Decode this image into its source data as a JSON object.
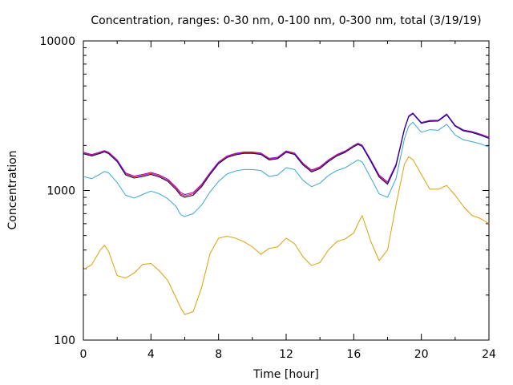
{
  "chart_data": {
    "type": "line",
    "title": "Concentration, ranges: 0-30 nm, 0-100 nm, 0-300 nm, total (3/19/19)",
    "xlabel": "Time [hour]",
    "ylabel": "Concentration",
    "xlim": [
      0,
      24
    ],
    "ylim": [
      100,
      10000
    ],
    "yscale": "log",
    "grid": false,
    "x_ticks": [
      0,
      4,
      8,
      12,
      16,
      20,
      24
    ],
    "x_tick_labels": [
      "0",
      "4",
      "8",
      "12",
      "16",
      "20",
      "24"
    ],
    "y_ticks": [
      100,
      1000,
      10000
    ],
    "y_tick_labels": [
      "100",
      "1000",
      "10000"
    ],
    "x": [
      0,
      0.5,
      1,
      1.25,
      1.5,
      2,
      2.5,
      3,
      3.5,
      4,
      4.5,
      5,
      5.5,
      5.75,
      6,
      6.5,
      7,
      7.5,
      8,
      8.5,
      9,
      9.5,
      10,
      10.5,
      11,
      11.5,
      12,
      12.5,
      13,
      13.5,
      14,
      14.5,
      15,
      15.5,
      16,
      16.25,
      16.5,
      17,
      17.5,
      18,
      18.5,
      19,
      19.25,
      19.5,
      20,
      20.5,
      21,
      21.5,
      22,
      22.5,
      23,
      23.5,
      24
    ],
    "series": [
      {
        "color": "#e51e10",
        "values": [
          1780,
          1720,
          1790,
          1830,
          1780,
          1580,
          1290,
          1230,
          1260,
          1300,
          1250,
          1170,
          1030,
          950,
          920,
          950,
          1080,
          1300,
          1530,
          1680,
          1750,
          1790,
          1790,
          1760,
          1620,
          1650,
          1820,
          1760,
          1500,
          1350,
          1420,
          1580,
          1720,
          1820,
          1980,
          2050,
          1990,
          1590,
          1250,
          1120,
          1480,
          2580,
          3130,
          3280,
          2830,
          2920,
          2930,
          3230,
          2710,
          2520,
          2460,
          2360,
          2250
        ]
      },
      {
        "color": "#9400d3",
        "values": [
          1800,
          1740,
          1810,
          1850,
          1800,
          1600,
          1310,
          1250,
          1280,
          1320,
          1270,
          1190,
          1050,
          970,
          940,
          970,
          1100,
          1320,
          1550,
          1700,
          1770,
          1810,
          1810,
          1780,
          1640,
          1670,
          1840,
          1780,
          1520,
          1370,
          1440,
          1600,
          1740,
          1840,
          2000,
          2070,
          2010,
          1610,
          1270,
          1140,
          1500,
          2600,
          3150,
          3300,
          2850,
          2940,
          2950,
          3250,
          2730,
          2540,
          2480,
          2380,
          2270
        ]
      },
      {
        "color": "#000080",
        "values": [
          1760,
          1700,
          1770,
          1810,
          1760,
          1560,
          1270,
          1210,
          1240,
          1280,
          1230,
          1150,
          1010,
          930,
          900,
          930,
          1060,
          1280,
          1510,
          1660,
          1730,
          1770,
          1770,
          1740,
          1600,
          1630,
          1800,
          1740,
          1480,
          1330,
          1400,
          1560,
          1700,
          1800,
          1960,
          2030,
          1970,
          1570,
          1230,
          1100,
          1460,
          2560,
          3110,
          3260,
          2810,
          2900,
          2910,
          3210,
          2690,
          2500,
          2440,
          2340,
          2230
        ]
      },
      {
        "color": "#3aa5d8",
        "values": [
          1240,
          1200,
          1290,
          1340,
          1310,
          1130,
          930,
          890,
          940,
          990,
          950,
          880,
          780,
          690,
          670,
          700,
          800,
          980,
          1150,
          1290,
          1350,
          1380,
          1380,
          1360,
          1240,
          1270,
          1420,
          1380,
          1170,
          1060,
          1120,
          1260,
          1360,
          1420,
          1540,
          1600,
          1550,
          1220,
          950,
          900,
          1200,
          2220,
          2690,
          2860,
          2450,
          2550,
          2530,
          2770,
          2350,
          2180,
          2120,
          2050,
          1950
        ]
      },
      {
        "color": "#d9a108",
        "values": [
          295,
          320,
          400,
          430,
          390,
          270,
          260,
          280,
          320,
          325,
          290,
          250,
          190,
          165,
          148,
          155,
          225,
          380,
          480,
          495,
          480,
          455,
          420,
          375,
          410,
          420,
          480,
          440,
          360,
          315,
          330,
          400,
          455,
          475,
          520,
          600,
          680,
          460,
          340,
          400,
          800,
          1500,
          1680,
          1610,
          1280,
          1020,
          1020,
          1080,
          930,
          780,
          680,
          650,
          600
        ]
      }
    ]
  }
}
